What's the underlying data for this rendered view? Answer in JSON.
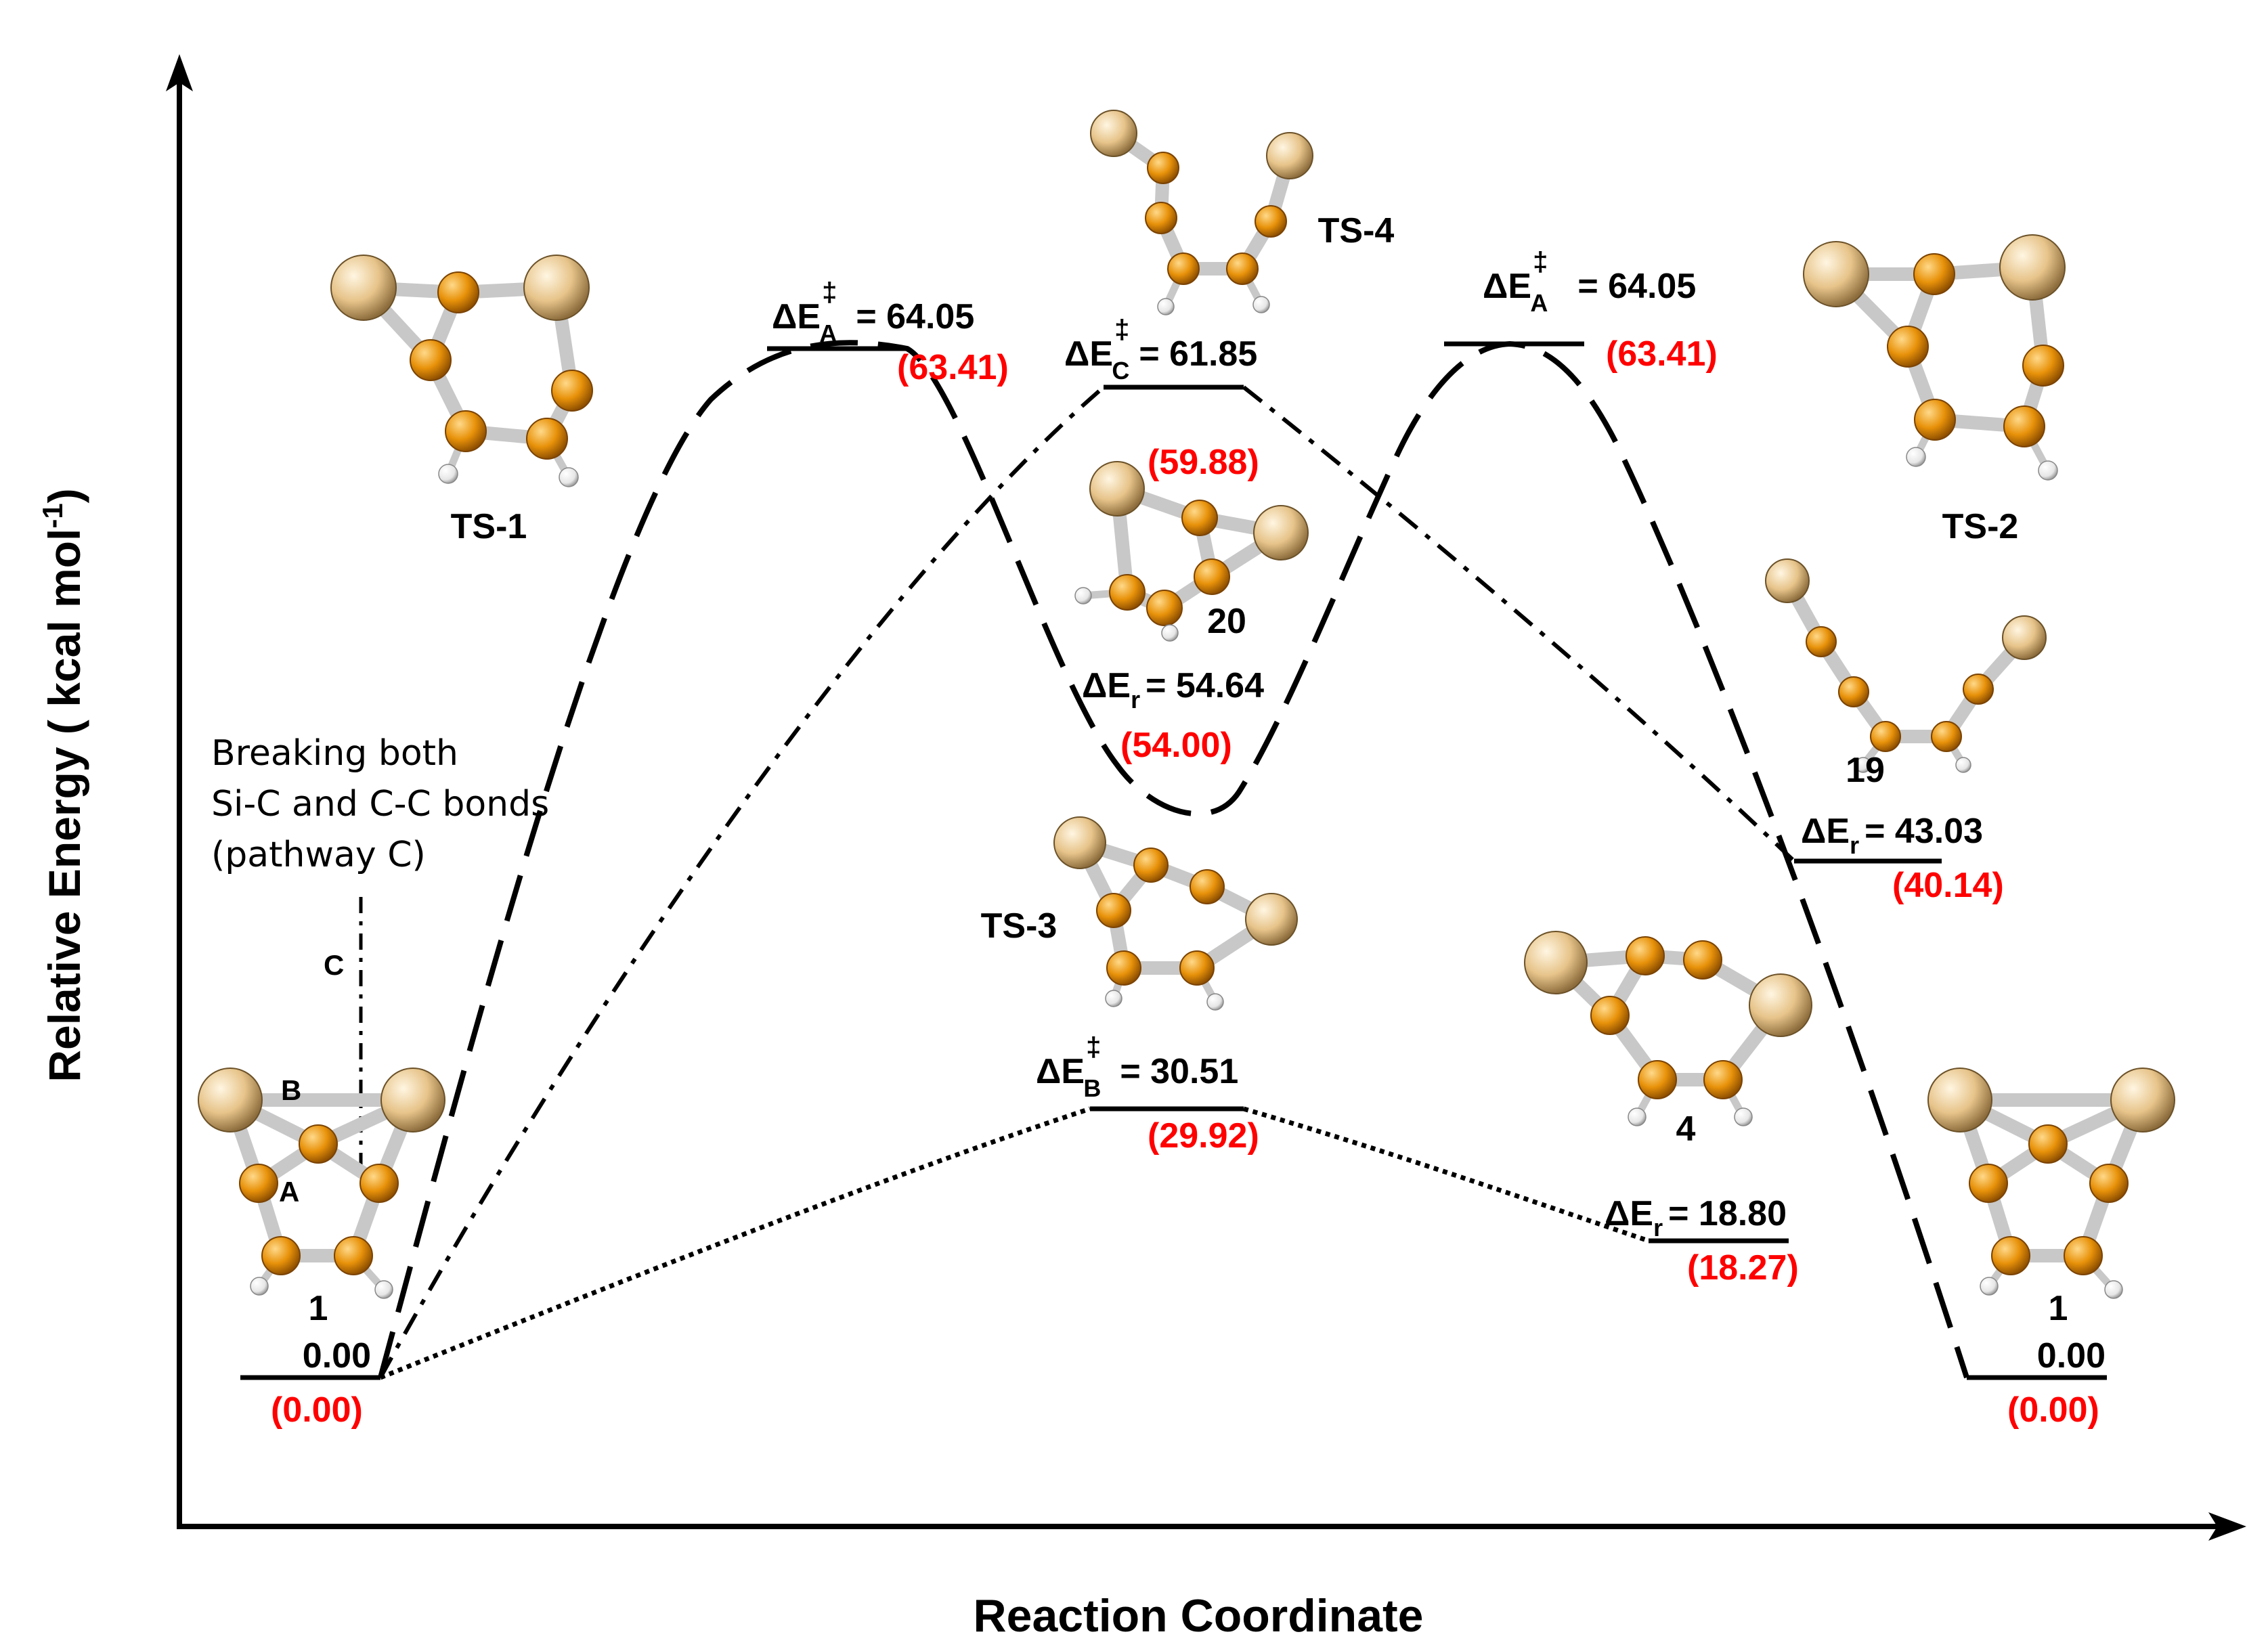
{
  "axes": {
    "y_label": "Relative Energy ( kcal mol",
    "y_label_sup": "-1",
    "y_label_close": ")",
    "x_label": "Reaction Coordinate"
  },
  "annotation": {
    "line1": "Breaking both",
    "line2": "Si-C and C-C bonds",
    "line3": "(pathway C)",
    "bond_c": "C",
    "bond_b": "B",
    "bond_a": "A"
  },
  "species": {
    "ts1": "TS-1",
    "ts2": "TS-2",
    "ts3": "TS-3",
    "ts4": "TS-4",
    "m20": "20",
    "m19": "19",
    "m4": "4",
    "m1_left": "1",
    "m1_right": "1"
  },
  "energies": {
    "start": {
      "value": "0.00",
      "alt": "(0.00)"
    },
    "end": {
      "value": "0.00",
      "alt": "(0.00)"
    },
    "ts_a_left": {
      "delta": "ΔE",
      "sup": "‡",
      "sub": "A",
      "value": "= 64.05",
      "alt": "(63.41)"
    },
    "ts_a_right": {
      "delta": "ΔE",
      "sup": "‡",
      "sub": "A",
      "value": "= 64.05",
      "alt": "(63.41)"
    },
    "ts_c": {
      "delta": "ΔE",
      "sup": "‡",
      "sub": "C",
      "value": "= 61.85",
      "alt": "(59.88)"
    },
    "ts_b": {
      "delta": "ΔE",
      "sup": "‡",
      "sub": "B",
      "value": "= 30.51",
      "alt": "(29.92)"
    },
    "r20": {
      "delta": "ΔE",
      "sub": "r",
      "value": "= 54.64",
      "alt": "(54.00)"
    },
    "r19": {
      "delta": "ΔE",
      "sub": "r",
      "value": "= 43.03",
      "alt": "(40.14)"
    },
    "r4": {
      "delta": "ΔE",
      "sub": "r",
      "value": "= 18.80",
      "alt": "(18.27)"
    }
  },
  "colors": {
    "silicon": "#e8c98e",
    "carbon": "#e8920a",
    "hydrogen": "#f2f2f2",
    "bond": "#c8c8c8",
    "alt_energy": "#ff0000"
  }
}
